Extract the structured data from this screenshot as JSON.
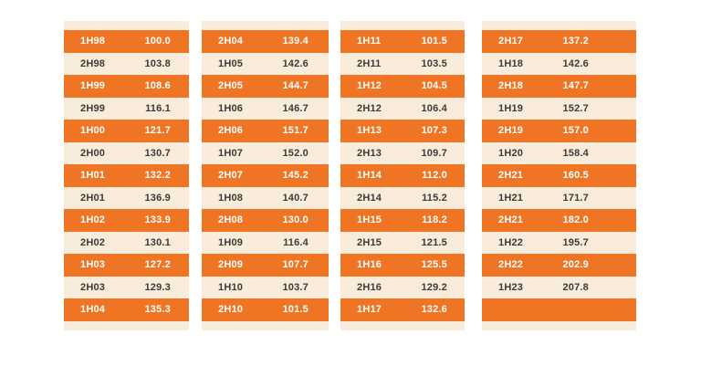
{
  "colors": {
    "row_highlight_orange": "#ef7423",
    "panel_cream": "#faecdb",
    "text_dark": "#3d3a38",
    "text_light": "#ffffff",
    "page_background": "#ffffff"
  },
  "table": {
    "description_visible_content": "half-year period index table",
    "columns": [
      {
        "rows": [
          {
            "label": "1H98",
            "value": "100.0"
          },
          {
            "label": "2H98",
            "value": "103.8"
          },
          {
            "label": "1H99",
            "value": "108.6"
          },
          {
            "label": "2H99",
            "value": "116.1"
          },
          {
            "label": "1H00",
            "value": "121.7"
          },
          {
            "label": "2H00",
            "value": "130.7"
          },
          {
            "label": "1H01",
            "value": "132.2"
          },
          {
            "label": "2H01",
            "value": "136.9"
          },
          {
            "label": "1H02",
            "value": "133.9"
          },
          {
            "label": "2H02",
            "value": "130.1"
          },
          {
            "label": "1H03",
            "value": "127.2"
          },
          {
            "label": "2H03",
            "value": "129.3"
          },
          {
            "label": "1H04",
            "value": "135.3"
          }
        ]
      },
      {
        "rows": [
          {
            "label": "2H04",
            "value": "139.4"
          },
          {
            "label": "1H05",
            "value": "142.6"
          },
          {
            "label": "2H05",
            "value": "144.7"
          },
          {
            "label": "1H06",
            "value": "146.7"
          },
          {
            "label": "2H06",
            "value": "151.7"
          },
          {
            "label": "1H07",
            "value": "152.0"
          },
          {
            "label": "2H07",
            "value": "145.2"
          },
          {
            "label": "1H08",
            "value": "140.7"
          },
          {
            "label": "2H08",
            "value": "130.0"
          },
          {
            "label": "1H09",
            "value": "116.4"
          },
          {
            "label": "2H09",
            "value": "107.7"
          },
          {
            "label": "1H10",
            "value": "103.7"
          },
          {
            "label": "2H10",
            "value": "101.5"
          }
        ]
      },
      {
        "rows": [
          {
            "label": "1H11",
            "value": "101.5"
          },
          {
            "label": "2H11",
            "value": "103.5"
          },
          {
            "label": "1H12",
            "value": "104.5"
          },
          {
            "label": "2H12",
            "value": "106.4"
          },
          {
            "label": "1H13",
            "value": "107.3"
          },
          {
            "label": "2H13",
            "value": "109.7"
          },
          {
            "label": "1H14",
            "value": "112.0"
          },
          {
            "label": "2H14",
            "value": "115.2"
          },
          {
            "label": "1H15",
            "value": "118.2"
          },
          {
            "label": "2H15",
            "value": "121.5"
          },
          {
            "label": "1H16",
            "value": "125.5"
          },
          {
            "label": "2H16",
            "value": "129.2"
          },
          {
            "label": "1H17",
            "value": "132.6"
          }
        ]
      },
      {
        "rows": [
          {
            "label": "2H17",
            "value": "137.2"
          },
          {
            "label": "1H18",
            "value": "142.6"
          },
          {
            "label": "2H18",
            "value": "147.7"
          },
          {
            "label": "1H19",
            "value": "152.7"
          },
          {
            "label": "2H19",
            "value": "157.0"
          },
          {
            "label": "1H20",
            "value": "158.4"
          },
          {
            "label": "2H21",
            "value": "160.5"
          },
          {
            "label": "1H21",
            "value": "171.7"
          },
          {
            "label": "2H21",
            "value": "182.0"
          },
          {
            "label": "1H22",
            "value": "195.7"
          },
          {
            "label": "2H22",
            "value": "202.9"
          },
          {
            "label": "1H23",
            "value": "207.8"
          },
          {
            "label": "",
            "value": ""
          }
        ]
      }
    ]
  }
}
